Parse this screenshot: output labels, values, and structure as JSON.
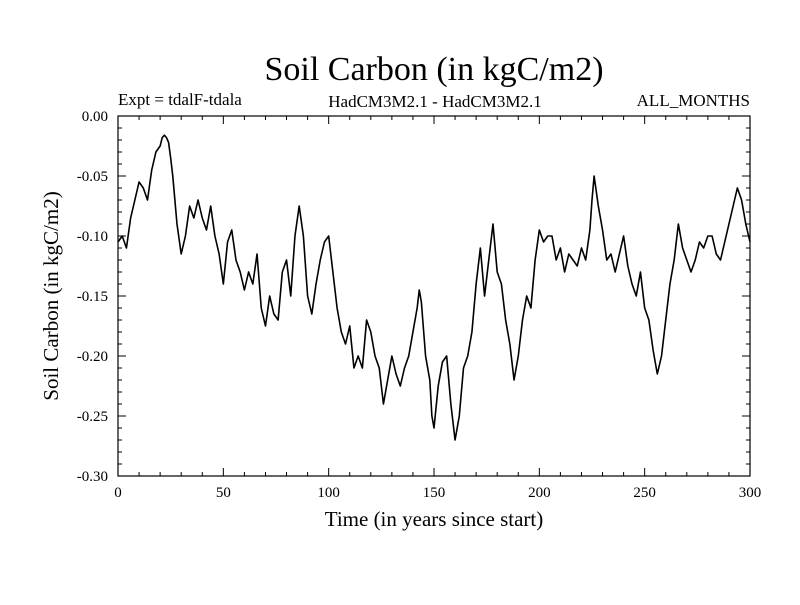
{
  "chart_data": {
    "type": "line",
    "title": "Soil Carbon (in kgC/m2)",
    "subtitle_left": "Expt = tdalF-tdala",
    "subtitle_center": "HadCM3M2.1 - HadCM3M2.1",
    "subtitle_right": "ALL_MONTHS",
    "xlabel": "Time (in years since start)",
    "ylabel": "Soil Carbon (in kgC/m2)",
    "xlim": [
      0,
      300
    ],
    "ylim": [
      -0.3,
      0.0
    ],
    "xticks": [
      0,
      50,
      100,
      150,
      200,
      250,
      300
    ],
    "xtick_labels": [
      "0",
      "50",
      "100",
      "150",
      "200",
      "250",
      "300"
    ],
    "yticks": [
      0.0,
      -0.05,
      -0.1,
      -0.15,
      -0.2,
      -0.25,
      -0.3
    ],
    "ytick_labels": [
      "0.00",
      "-0.05",
      "-0.10",
      "-0.15",
      "-0.20",
      "-0.25",
      "-0.30"
    ],
    "grid": false,
    "line_color": "#000000",
    "series": [
      {
        "x": [
          0,
          2,
          4,
          6,
          8,
          10,
          12,
          14,
          16,
          18,
          20,
          21,
          22,
          23,
          24,
          25,
          26,
          27,
          28,
          30,
          32,
          34,
          36,
          38,
          40,
          42,
          44,
          46,
          48,
          50,
          52,
          54,
          56,
          58,
          60,
          62,
          64,
          66,
          68,
          70,
          72,
          74,
          76,
          78,
          80,
          82,
          84,
          86,
          88,
          90,
          92,
          94,
          96,
          98,
          100,
          102,
          104,
          106,
          108,
          110,
          112,
          114,
          116,
          118,
          120,
          122,
          124,
          126,
          128,
          130,
          132,
          134,
          136,
          138,
          140,
          142,
          143,
          144,
          146,
          148,
          149,
          150,
          152,
          154,
          156,
          158,
          160,
          162,
          164,
          166,
          168,
          170,
          172,
          174,
          176,
          178,
          180,
          182,
          184,
          186,
          188,
          190,
          192,
          194,
          196,
          198,
          200,
          202,
          204,
          206,
          208,
          210,
          212,
          214,
          216,
          218,
          220,
          222,
          224,
          225,
          226,
          228,
          230,
          232,
          234,
          236,
          238,
          240,
          242,
          244,
          246,
          248,
          250,
          252,
          254,
          256,
          258,
          260,
          262,
          264,
          266,
          268,
          270,
          272,
          274,
          276,
          278,
          280,
          282,
          284,
          286,
          288,
          290,
          292,
          294,
          296,
          298,
          300
        ],
        "y": [
          -0.105,
          -0.1,
          -0.11,
          -0.085,
          -0.07,
          -0.055,
          -0.06,
          -0.07,
          -0.045,
          -0.03,
          -0.025,
          -0.018,
          -0.016,
          -0.018,
          -0.022,
          -0.035,
          -0.05,
          -0.07,
          -0.09,
          -0.115,
          -0.1,
          -0.075,
          -0.085,
          -0.07,
          -0.085,
          -0.095,
          -0.075,
          -0.1,
          -0.115,
          -0.14,
          -0.105,
          -0.095,
          -0.12,
          -0.13,
          -0.145,
          -0.13,
          -0.14,
          -0.115,
          -0.16,
          -0.175,
          -0.15,
          -0.165,
          -0.17,
          -0.13,
          -0.12,
          -0.15,
          -0.1,
          -0.075,
          -0.1,
          -0.15,
          -0.165,
          -0.14,
          -0.12,
          -0.105,
          -0.1,
          -0.13,
          -0.16,
          -0.18,
          -0.19,
          -0.175,
          -0.21,
          -0.2,
          -0.21,
          -0.17,
          -0.18,
          -0.2,
          -0.21,
          -0.24,
          -0.22,
          -0.2,
          -0.215,
          -0.225,
          -0.21,
          -0.2,
          -0.18,
          -0.16,
          -0.145,
          -0.155,
          -0.2,
          -0.22,
          -0.25,
          -0.26,
          -0.225,
          -0.205,
          -0.2,
          -0.24,
          -0.27,
          -0.25,
          -0.21,
          -0.2,
          -0.18,
          -0.14,
          -0.11,
          -0.15,
          -0.12,
          -0.09,
          -0.13,
          -0.14,
          -0.17,
          -0.19,
          -0.22,
          -0.2,
          -0.17,
          -0.15,
          -0.16,
          -0.12,
          -0.095,
          -0.105,
          -0.1,
          -0.1,
          -0.12,
          -0.11,
          -0.13,
          -0.115,
          -0.12,
          -0.125,
          -0.11,
          -0.12,
          -0.095,
          -0.07,
          -0.05,
          -0.075,
          -0.095,
          -0.12,
          -0.115,
          -0.13,
          -0.115,
          -0.1,
          -0.125,
          -0.14,
          -0.15,
          -0.13,
          -0.16,
          -0.17,
          -0.195,
          -0.215,
          -0.2,
          -0.17,
          -0.14,
          -0.12,
          -0.09,
          -0.11,
          -0.12,
          -0.13,
          -0.12,
          -0.105,
          -0.11,
          -0.1,
          -0.1,
          -0.115,
          -0.12,
          -0.105,
          -0.09,
          -0.075,
          -0.06,
          -0.07,
          -0.09,
          -0.105
        ]
      }
    ]
  }
}
